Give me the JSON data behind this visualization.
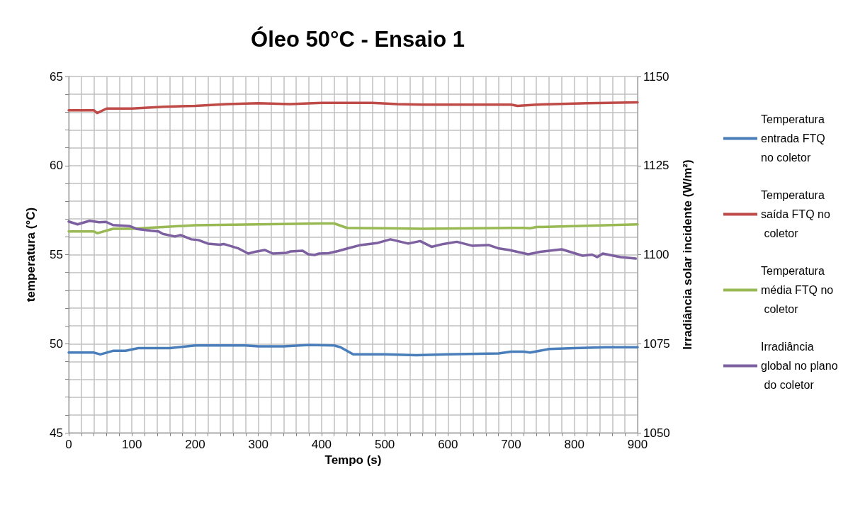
{
  "chart_data": {
    "type": "line",
    "title": "Óleo 50°C - Ensaio 1",
    "xlabel": "Tempo (s)",
    "ylabel": "temperatura (°C)",
    "y2label": "Irradiância solar incidente (W/m²)",
    "xlim": [
      0,
      900
    ],
    "xticks": [
      0,
      {
        "value": 20,
        "label": null
      },
      {
        "value": 40,
        "label": null
      },
      {
        "value": 60,
        "label": null
      },
      {
        "value": 80,
        "label": null
      },
      100,
      {
        "value": 120,
        "label": null
      },
      {
        "value": 140,
        "label": null
      },
      {
        "value": 160,
        "label": null
      },
      {
        "value": 180,
        "label": null
      },
      200,
      {
        "value": 220,
        "label": null
      },
      {
        "value": 240,
        "label": null
      },
      {
        "value": 260,
        "label": null
      },
      {
        "value": 280,
        "label": null
      },
      300,
      {
        "value": 320,
        "label": null
      },
      {
        "value": 340,
        "label": null
      },
      {
        "value": 360,
        "label": null
      },
      {
        "value": 380,
        "label": null
      },
      400,
      {
        "value": 420,
        "label": null
      },
      {
        "value": 440,
        "label": null
      },
      {
        "value": 460,
        "label": null
      },
      {
        "value": 480,
        "label": null
      },
      500,
      {
        "value": 520,
        "label": null
      },
      {
        "value": 540,
        "label": null
      },
      {
        "value": 560,
        "label": null
      },
      {
        "value": 580,
        "label": null
      },
      600,
      {
        "value": 620,
        "label": null
      },
      {
        "value": 640,
        "label": null
      },
      {
        "value": 660,
        "label": null
      },
      {
        "value": 680,
        "label": null
      },
      700,
      {
        "value": 720,
        "label": null
      },
      {
        "value": 740,
        "label": null
      },
      {
        "value": 760,
        "label": null
      },
      {
        "value": 780,
        "label": null
      },
      800,
      {
        "value": 820,
        "label": null
      },
      {
        "value": 840,
        "label": null
      },
      {
        "value": 860,
        "label": null
      },
      {
        "value": 880,
        "label": null
      },
      900
    ],
    "ylim": [
      45,
      65
    ],
    "yticks": [
      45,
      {
        "value": 46,
        "label": null
      },
      {
        "value": 47,
        "label": null
      },
      {
        "value": 48,
        "label": null
      },
      {
        "value": 49,
        "label": null
      },
      50,
      {
        "value": 51,
        "label": null
      },
      {
        "value": 52,
        "label": null
      },
      {
        "value": 53,
        "label": null
      },
      {
        "value": 54,
        "label": null
      },
      55,
      {
        "value": 56,
        "label": null
      },
      {
        "value": 57,
        "label": null
      },
      {
        "value": 58,
        "label": null
      },
      {
        "value": 59,
        "label": null
      },
      60,
      {
        "value": 61,
        "label": null
      },
      {
        "value": 62,
        "label": null
      },
      {
        "value": 63,
        "label": null
      },
      {
        "value": 64,
        "label": null
      },
      65
    ],
    "y2lim": [
      1050,
      1150
    ],
    "y2ticks": [
      1050,
      1075,
      1100,
      1125,
      1150
    ],
    "grid": true,
    "legend": "right",
    "marker": "none",
    "line_style": "solid",
    "series": [
      {
        "name": "Temperatura entrada FTQ no coletor",
        "color": "#4a7ebb",
        "x": [
          0,
          40,
          50,
          70,
          90,
          110,
          160,
          200,
          280,
          300,
          340,
          380,
          420,
          430,
          450,
          500,
          550,
          600,
          680,
          700,
          720,
          730,
          760,
          800,
          850,
          900
        ],
        "values": [
          49.5,
          49.5,
          49.4,
          49.6,
          49.6,
          49.75,
          49.75,
          49.9,
          49.9,
          49.85,
          49.85,
          49.93,
          49.9,
          49.8,
          49.4,
          49.4,
          49.35,
          49.4,
          49.45,
          49.55,
          49.55,
          49.5,
          49.7,
          49.75,
          49.8,
          49.8
        ]
      },
      {
        "name": "Temperatura saída FTQ no coletor",
        "color": "#be4b48",
        "x": [
          0,
          40,
          45,
          60,
          100,
          150,
          200,
          250,
          300,
          350,
          400,
          480,
          520,
          560,
          700,
          710,
          740,
          820,
          900
        ],
        "values": [
          63.1,
          63.1,
          62.95,
          63.2,
          63.2,
          63.3,
          63.35,
          63.45,
          63.5,
          63.45,
          63.52,
          63.52,
          63.45,
          63.42,
          63.42,
          63.35,
          63.42,
          63.5,
          63.55
        ]
      },
      {
        "name": "Temperatura média FTQ no coletor",
        "color": "#98b954",
        "x": [
          0,
          40,
          45,
          70,
          100,
          150,
          200,
          300,
          400,
          420,
          440,
          500,
          560,
          700,
          720,
          730,
          740,
          800,
          900
        ],
        "values": [
          56.3,
          56.3,
          56.2,
          56.45,
          56.45,
          56.55,
          56.65,
          56.7,
          56.75,
          56.75,
          56.5,
          56.48,
          56.45,
          56.5,
          56.5,
          56.48,
          56.55,
          56.6,
          56.7
        ]
      },
      {
        "name": "Irradiância global no plano do coletor",
        "color": "#7d60a0",
        "axis": "y2",
        "x": [
          0,
          14,
          33,
          48,
          59,
          70,
          97,
          108,
          130,
          142,
          149,
          168,
          177,
          194,
          205,
          220,
          239,
          245,
          269,
          284,
          295,
          310,
          323,
          344,
          351,
          370,
          379,
          389,
          396,
          411,
          426,
          440,
          462,
          489,
          509,
          537,
          556,
          574,
          593,
          614,
          638,
          664,
          679,
          697,
          727,
          746,
          780,
          813,
          828,
          836,
          845,
          873,
          897
        ],
        "values": [
          1109.3,
          1108.5,
          1109.5,
          1109.1,
          1109.2,
          1108.3,
          1108,
          1107.2,
          1106.7,
          1106.5,
          1105.8,
          1105.1,
          1105.5,
          1104.3,
          1104.1,
          1103.1,
          1102.8,
          1103,
          1101.7,
          1100.3,
          1100.8,
          1101.3,
          1100.3,
          1100.5,
          1100.9,
          1101.1,
          1100.1,
          1099.9,
          1100.3,
          1100.4,
          1101,
          1101.7,
          1102.7,
          1103.3,
          1104.3,
          1103.1,
          1103.8,
          1102.2,
          1103,
          1103.6,
          1102.5,
          1102.7,
          1101.8,
          1101.3,
          1100.1,
          1100.8,
          1101.5,
          1099.7,
          1100,
          1099.3,
          1100.3,
          1099.3,
          1098.9
        ]
      }
    ]
  }
}
